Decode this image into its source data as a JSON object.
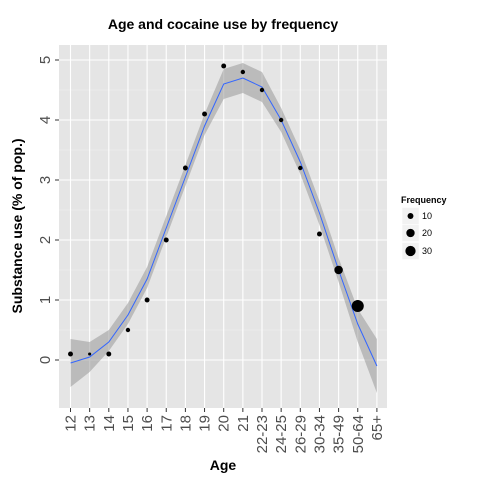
{
  "chart_data": {
    "type": "scatter",
    "title": "Age and cocaine use by frequency",
    "xlabel": "Age",
    "ylabel": "Substance use (% of pop.)",
    "categories": [
      "12",
      "13",
      "14",
      "15",
      "16",
      "17",
      "18",
      "19",
      "20",
      "21",
      "22-23",
      "24-25",
      "26-29",
      "30-34",
      "35-49",
      "50-64",
      "65+"
    ],
    "yticks": [
      0,
      1,
      2,
      3,
      4,
      5
    ],
    "ylim": [
      -0.8,
      5.25
    ],
    "grid": true,
    "points": [
      {
        "x": "12",
        "y": 0.1,
        "frequency": 5
      },
      {
        "x": "13",
        "y": 0.1,
        "frequency": 2
      },
      {
        "x": "14",
        "y": 0.1,
        "frequency": 5
      },
      {
        "x": "15",
        "y": 0.5,
        "frequency": 4
      },
      {
        "x": "16",
        "y": 1.0,
        "frequency": 5
      },
      {
        "x": "17",
        "y": 2.0,
        "frequency": 5
      },
      {
        "x": "18",
        "y": 3.2,
        "frequency": 5
      },
      {
        "x": "19",
        "y": 4.1,
        "frequency": 5
      },
      {
        "x": "20",
        "y": 4.9,
        "frequency": 5
      },
      {
        "x": "21",
        "y": 4.8,
        "frequency": 4
      },
      {
        "x": "22-23",
        "y": 4.5,
        "frequency": 4
      },
      {
        "x": "24-25",
        "y": 4.0,
        "frequency": 4
      },
      {
        "x": "26-29",
        "y": 3.2,
        "frequency": 4
      },
      {
        "x": "30-34",
        "y": 2.1,
        "frequency": 5
      },
      {
        "x": "35-49",
        "y": 1.5,
        "frequency": 15
      },
      {
        "x": "50-64",
        "y": 0.9,
        "frequency": 30
      }
    ],
    "smooth": {
      "y": [
        -0.05,
        0.05,
        0.3,
        0.75,
        1.35,
        2.2,
        3.05,
        3.9,
        4.6,
        4.7,
        4.55,
        4.0,
        3.3,
        2.45,
        1.5,
        0.6,
        -0.1
      ],
      "lower": [
        -0.45,
        -0.2,
        0.15,
        0.6,
        1.2,
        2.05,
        2.9,
        3.75,
        4.35,
        4.45,
        4.3,
        3.8,
        3.1,
        2.25,
        1.3,
        0.3,
        -0.55
      ],
      "upper": [
        0.35,
        0.3,
        0.5,
        0.95,
        1.55,
        2.4,
        3.25,
        4.1,
        4.85,
        4.95,
        4.8,
        4.2,
        3.5,
        2.65,
        1.7,
        0.85,
        0.35
      ],
      "line_color": "#3366FF",
      "band_color": "#999999"
    },
    "legend": {
      "title": "Frequency",
      "position": "right",
      "entries": [
        {
          "label": "10",
          "value": 10
        },
        {
          "label": "20",
          "value": 20
        },
        {
          "label": "30",
          "value": 30
        }
      ]
    },
    "colors": {
      "panel": "#e5e5e5",
      "grid": "#ffffff",
      "point": "#000000"
    }
  }
}
